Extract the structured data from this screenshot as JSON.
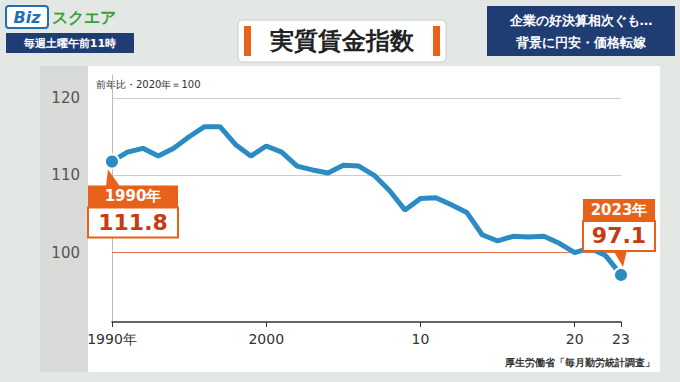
{
  "screen": {
    "logo": [
      "Biz",
      "スクエア"
    ],
    "schedule": "毎週土曜午前11時",
    "headline": [
      "企業の好決算相次ぐも…",
      "背景に円安・価格転嫁"
    ]
  },
  "chart_data": {
    "type": "line",
    "title": "実質賃金指数",
    "subtitle": "前年比・2020年＝100",
    "source": "厚生労働省「毎月勤労統計調査」",
    "categories": [
      "1990年",
      null,
      null,
      null,
      null,
      null,
      null,
      null,
      null,
      null,
      "2000",
      null,
      null,
      null,
      null,
      null,
      null,
      null,
      null,
      null,
      "10",
      null,
      null,
      null,
      null,
      null,
      null,
      null,
      null,
      null,
      "20",
      null,
      null,
      "23"
    ],
    "values": [
      111.8,
      113,
      113.5,
      112.5,
      113.5,
      115,
      116.3,
      116.3,
      114,
      112.5,
      113.8,
      113,
      111.2,
      110.7,
      110.3,
      111.3,
      111.2,
      110,
      108,
      105.5,
      107,
      107.1,
      106.2,
      105.2,
      102.3,
      101.5,
      102.1,
      102,
      102.1,
      101.2,
      100,
      100.6,
      99.6,
      97.1
    ],
    "color": "#2b8cc4",
    "marker": "circle",
    "ylim": [
      91,
      123
    ],
    "yticks": [
      100,
      110,
      120
    ],
    "grid": true,
    "annotations": [
      {
        "label": "1990年",
        "value": 111.8
      },
      {
        "label": "2023年",
        "value": 97.1
      }
    ]
  }
}
